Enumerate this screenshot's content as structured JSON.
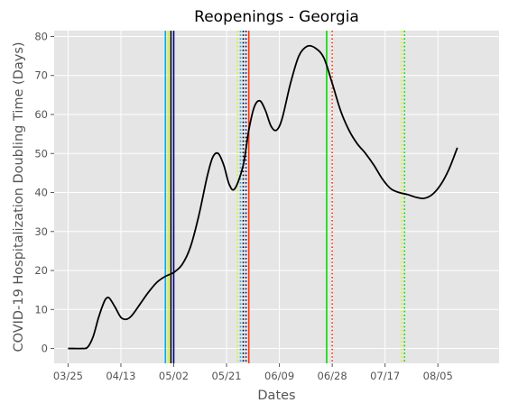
{
  "chart_data": {
    "type": "line",
    "title": "Reopenings - Georgia",
    "xlabel": "Dates",
    "ylabel": "COVID-19 Hospitalization Doubling Time (Days)",
    "x_start": "2020-03-25",
    "xlim": [
      "2020-03-20",
      "2020-08-27"
    ],
    "ylim": [
      -3.8,
      81.5
    ],
    "yticks": [
      0,
      10,
      20,
      30,
      40,
      50,
      60,
      70,
      80
    ],
    "xticks": [
      {
        "date": "2020-03-25",
        "label": "03/25"
      },
      {
        "date": "2020-04-13",
        "label": "04/13"
      },
      {
        "date": "2020-05-02",
        "label": "05/02"
      },
      {
        "date": "2020-05-21",
        "label": "05/21"
      },
      {
        "date": "2020-06-09",
        "label": "06/09"
      },
      {
        "date": "2020-06-28",
        "label": "06/28"
      },
      {
        "date": "2020-07-17",
        "label": "07/17"
      },
      {
        "date": "2020-08-05",
        "label": "08/05"
      }
    ],
    "grid": true,
    "background": "#e5e5e5",
    "series": [
      {
        "color": "#000000",
        "points": [
          [
            "2020-03-25",
            0
          ],
          [
            "2020-03-27",
            0
          ],
          [
            "2020-03-30",
            0
          ],
          [
            "2020-04-01",
            0.3
          ],
          [
            "2020-04-03",
            3
          ],
          [
            "2020-04-05",
            8
          ],
          [
            "2020-04-07",
            12
          ],
          [
            "2020-04-08",
            13
          ],
          [
            "2020-04-09",
            12.8
          ],
          [
            "2020-04-11",
            10.5
          ],
          [
            "2020-04-13",
            8
          ],
          [
            "2020-04-15",
            7.5
          ],
          [
            "2020-04-17",
            8.5
          ],
          [
            "2020-04-20",
            11.5
          ],
          [
            "2020-04-23",
            14.5
          ],
          [
            "2020-04-26",
            17
          ],
          [
            "2020-04-29",
            18.5
          ],
          [
            "2020-05-02",
            19.5
          ],
          [
            "2020-05-05",
            21.5
          ],
          [
            "2020-05-08",
            26
          ],
          [
            "2020-05-11",
            34
          ],
          [
            "2020-05-14",
            44
          ],
          [
            "2020-05-16",
            49
          ],
          [
            "2020-05-18",
            50
          ],
          [
            "2020-05-20",
            47
          ],
          [
            "2020-05-22",
            42
          ],
          [
            "2020-05-24",
            41
          ],
          [
            "2020-05-27",
            47
          ],
          [
            "2020-05-29",
            56
          ],
          [
            "2020-05-31",
            62
          ],
          [
            "2020-06-02",
            63.5
          ],
          [
            "2020-06-04",
            61
          ],
          [
            "2020-06-06",
            57
          ],
          [
            "2020-06-08",
            56
          ],
          [
            "2020-06-10",
            59
          ],
          [
            "2020-06-13",
            68
          ],
          [
            "2020-06-16",
            75
          ],
          [
            "2020-06-19",
            77.5
          ],
          [
            "2020-06-22",
            77
          ],
          [
            "2020-06-25",
            74.5
          ],
          [
            "2020-06-28",
            68
          ],
          [
            "2020-07-01",
            61
          ],
          [
            "2020-07-04",
            56
          ],
          [
            "2020-07-07",
            52.5
          ],
          [
            "2020-07-10",
            50
          ],
          [
            "2020-07-13",
            47
          ],
          [
            "2020-07-16",
            43.5
          ],
          [
            "2020-07-19",
            41
          ],
          [
            "2020-07-22",
            40
          ],
          [
            "2020-07-25",
            39.5
          ],
          [
            "2020-07-28",
            38.8
          ],
          [
            "2020-07-31",
            38.5
          ],
          [
            "2020-08-03",
            39.5
          ],
          [
            "2020-08-06",
            42
          ],
          [
            "2020-08-09",
            46
          ],
          [
            "2020-08-12",
            51.5
          ]
        ]
      }
    ],
    "vlines": [
      {
        "date": "2020-04-29",
        "color": "#00aaff",
        "style": "solid"
      },
      {
        "date": "2020-04-30",
        "color": "#ccff00",
        "style": "solid"
      },
      {
        "date": "2020-05-01",
        "color": "#000000",
        "style": "solid"
      },
      {
        "date": "2020-05-02",
        "color": "#000080",
        "style": "solid"
      },
      {
        "date": "2020-05-25",
        "color": "#ccff00",
        "style": "dotted"
      },
      {
        "date": "2020-05-26",
        "color": "#00aaff",
        "style": "dotted"
      },
      {
        "date": "2020-05-27",
        "color": "#000000",
        "style": "dotted"
      },
      {
        "date": "2020-05-28",
        "color": "#000080",
        "style": "dotted"
      },
      {
        "date": "2020-05-29",
        "color": "#ff3300",
        "style": "solid"
      },
      {
        "date": "2020-06-26",
        "color": "#00dd00",
        "style": "solid"
      },
      {
        "date": "2020-06-28",
        "color": "#ff3300",
        "style": "dotted"
      },
      {
        "date": "2020-07-23",
        "color": "#ccff00",
        "style": "dotted"
      },
      {
        "date": "2020-07-24",
        "color": "#00dd00",
        "style": "dotted"
      }
    ]
  }
}
